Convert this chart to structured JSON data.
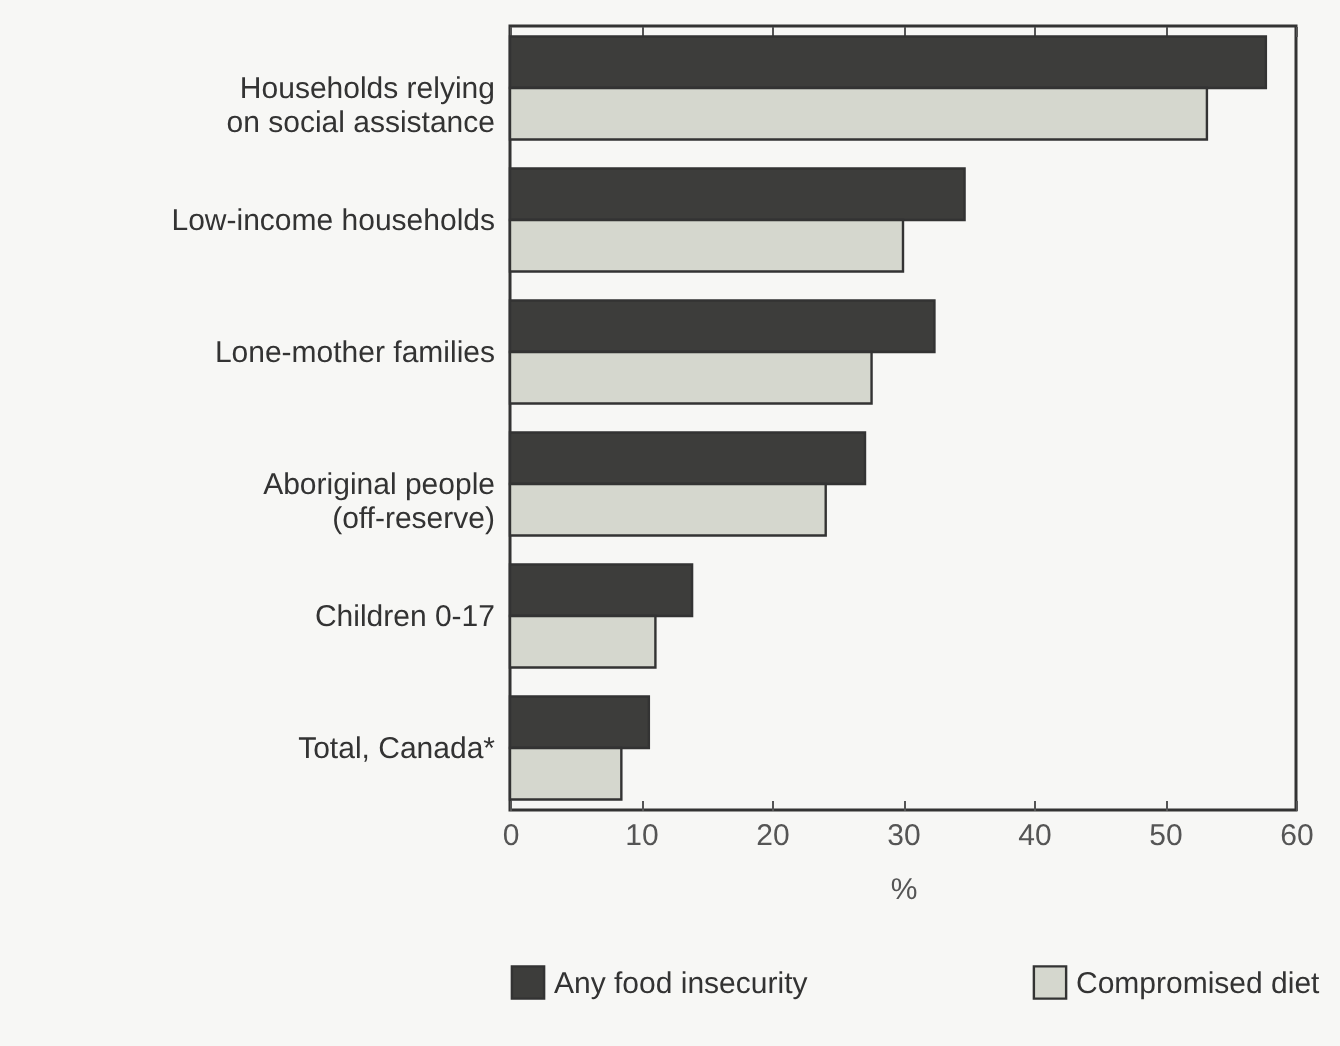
{
  "chart_data": {
    "type": "bar",
    "orientation": "horizontal",
    "xlabel": "%",
    "categories": [
      "Households relying on social assistance",
      "Low-income households",
      "Lone-mother families",
      "Aboriginal people (off-reserve)",
      "Children 0-17",
      "Total, Canada*"
    ],
    "series": [
      {
        "name": "Any food insecurity",
        "color": "#3d3d3b",
        "values": [
          57.7,
          34.7,
          32.4,
          27.1,
          13.9,
          10.6
        ]
      },
      {
        "name": "Compromised diet",
        "color": "#d5d7ce",
        "values": [
          53.2,
          30,
          27.6,
          24.1,
          11.1,
          8.5
        ]
      }
    ],
    "xlim": [
      0,
      60
    ],
    "xticks": [
      0,
      10,
      20,
      30,
      40,
      50,
      60
    ],
    "grid": false,
    "legend": "bottom"
  }
}
